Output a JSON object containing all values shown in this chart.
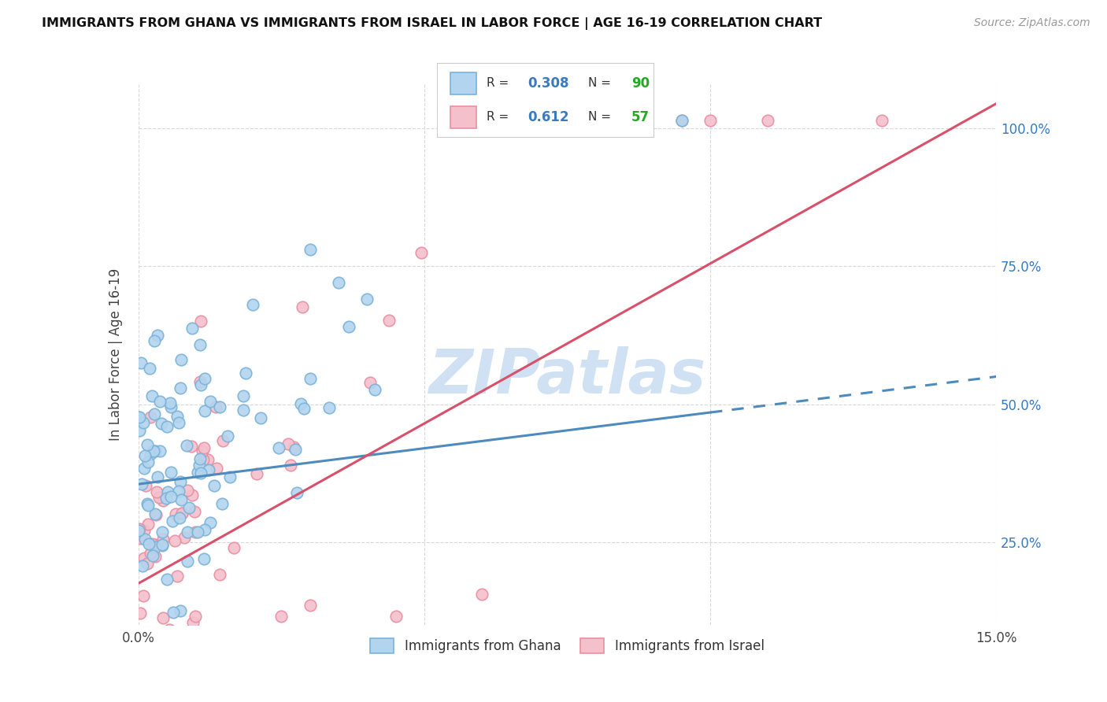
{
  "title": "IMMIGRANTS FROM GHANA VS IMMIGRANTS FROM ISRAEL IN LABOR FORCE | AGE 16-19 CORRELATION CHART",
  "source": "Source: ZipAtlas.com",
  "ylabel_label": "In Labor Force | Age 16-19",
  "xlim": [
    0.0,
    0.15
  ],
  "ylim": [
    0.1,
    1.08
  ],
  "ghana_R": 0.308,
  "ghana_N": 90,
  "israel_R": 0.612,
  "israel_N": 57,
  "ghana_color": "#7ab3d9",
  "ghana_color_fill": "#b3d4ee",
  "israel_color": "#e88fa0",
  "israel_color_fill": "#f4c0cc",
  "ghana_line_color": "#4d8bbf",
  "israel_line_color": "#d9506a",
  "background_color": "#ffffff",
  "grid_color": "#d8d8d8",
  "watermark_color": "#c0d8ee",
  "legend_R_color": "#3a7abd",
  "legend_N_color": "#22aa22",
  "ghana_line_b": 0.355,
  "ghana_line_m": 1.3,
  "israel_line_b": 0.175,
  "israel_line_m": 5.8,
  "seed": 77
}
